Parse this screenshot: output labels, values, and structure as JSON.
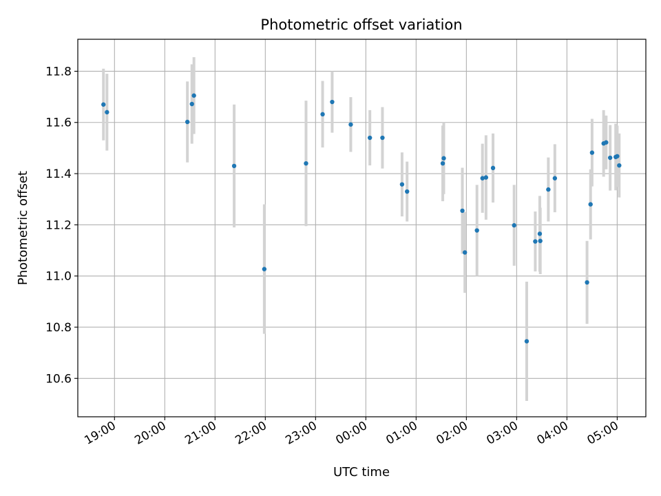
{
  "chart_data": {
    "type": "scatter",
    "title": "Photometric offset variation",
    "xlabel": "UTC time",
    "ylabel": "Photometric offset",
    "x_unit": "hours since 19:00 UTC",
    "xlim": [
      -0.73,
      10.57
    ],
    "ylim": [
      10.45,
      11.925
    ],
    "x_ticks": [
      {
        "x": 0,
        "label": "19:00"
      },
      {
        "x": 1,
        "label": "20:00"
      },
      {
        "x": 2,
        "label": "21:00"
      },
      {
        "x": 3,
        "label": "22:00"
      },
      {
        "x": 4,
        "label": "23:00"
      },
      {
        "x": 5,
        "label": "00:00"
      },
      {
        "x": 6,
        "label": "01:00"
      },
      {
        "x": 7,
        "label": "02:00"
      },
      {
        "x": 8,
        "label": "03:00"
      },
      {
        "x": 9,
        "label": "04:00"
      },
      {
        "x": 10,
        "label": "05:00"
      }
    ],
    "y_ticks": [
      {
        "y": 10.6,
        "label": "10.6"
      },
      {
        "y": 10.8,
        "label": "10.8"
      },
      {
        "y": 11.0,
        "label": "11.0"
      },
      {
        "y": 11.2,
        "label": "11.2"
      },
      {
        "y": 11.4,
        "label": "11.4"
      },
      {
        "y": 11.6,
        "label": "11.6"
      },
      {
        "y": 11.8,
        "label": "11.8"
      }
    ],
    "grid": true,
    "point_color": "#1f77b4",
    "errorbar_color": "#d3d3d3",
    "points": [
      {
        "x": -0.22,
        "y": 11.67,
        "err": 0.14
      },
      {
        "x": -0.15,
        "y": 11.64,
        "err": 0.15
      },
      {
        "x": 1.45,
        "y": 11.602,
        "err": 0.158
      },
      {
        "x": 1.54,
        "y": 11.672,
        "err": 0.155
      },
      {
        "x": 1.58,
        "y": 11.705,
        "err": 0.15
      },
      {
        "x": 2.38,
        "y": 11.43,
        "err": 0.24
      },
      {
        "x": 2.98,
        "y": 11.027,
        "err": 0.253
      },
      {
        "x": 3.81,
        "y": 11.44,
        "err": 0.245
      },
      {
        "x": 4.14,
        "y": 11.632,
        "err": 0.13
      },
      {
        "x": 4.33,
        "y": 11.68,
        "err": 0.12
      },
      {
        "x": 4.7,
        "y": 11.592,
        "err": 0.107
      },
      {
        "x": 5.08,
        "y": 11.54,
        "err": 0.108
      },
      {
        "x": 5.33,
        "y": 11.54,
        "err": 0.12
      },
      {
        "x": 5.72,
        "y": 11.358,
        "err": 0.125
      },
      {
        "x": 5.82,
        "y": 11.33,
        "err": 0.117
      },
      {
        "x": 6.53,
        "y": 11.44,
        "err": 0.148
      },
      {
        "x": 6.55,
        "y": 11.46,
        "err": 0.14
      },
      {
        "x": 6.92,
        "y": 11.255,
        "err": 0.168
      },
      {
        "x": 6.97,
        "y": 11.092,
        "err": 0.158
      },
      {
        "x": 7.21,
        "y": 11.178,
        "err": 0.178
      },
      {
        "x": 7.32,
        "y": 11.382,
        "err": 0.135
      },
      {
        "x": 7.39,
        "y": 11.385,
        "err": 0.165
      },
      {
        "x": 7.53,
        "y": 11.422,
        "err": 0.135
      },
      {
        "x": 7.95,
        "y": 11.198,
        "err": 0.158
      },
      {
        "x": 8.2,
        "y": 10.745,
        "err": 0.233
      },
      {
        "x": 8.37,
        "y": 11.135,
        "err": 0.117
      },
      {
        "x": 8.46,
        "y": 11.165,
        "err": 0.148
      },
      {
        "x": 8.47,
        "y": 11.137,
        "err": 0.13
      },
      {
        "x": 8.63,
        "y": 11.338,
        "err": 0.125
      },
      {
        "x": 8.76,
        "y": 11.382,
        "err": 0.133
      },
      {
        "x": 9.4,
        "y": 10.975,
        "err": 0.162
      },
      {
        "x": 9.47,
        "y": 11.28,
        "err": 0.137
      },
      {
        "x": 9.5,
        "y": 11.482,
        "err": 0.132
      },
      {
        "x": 9.73,
        "y": 11.518,
        "err": 0.13
      },
      {
        "x": 9.78,
        "y": 11.522,
        "err": 0.105
      },
      {
        "x": 9.86,
        "y": 11.462,
        "err": 0.128
      },
      {
        "x": 9.97,
        "y": 11.465,
        "err": 0.13
      },
      {
        "x": 10.0,
        "y": 11.468,
        "err": 0.12
      },
      {
        "x": 10.04,
        "y": 11.432,
        "err": 0.125
      }
    ]
  }
}
